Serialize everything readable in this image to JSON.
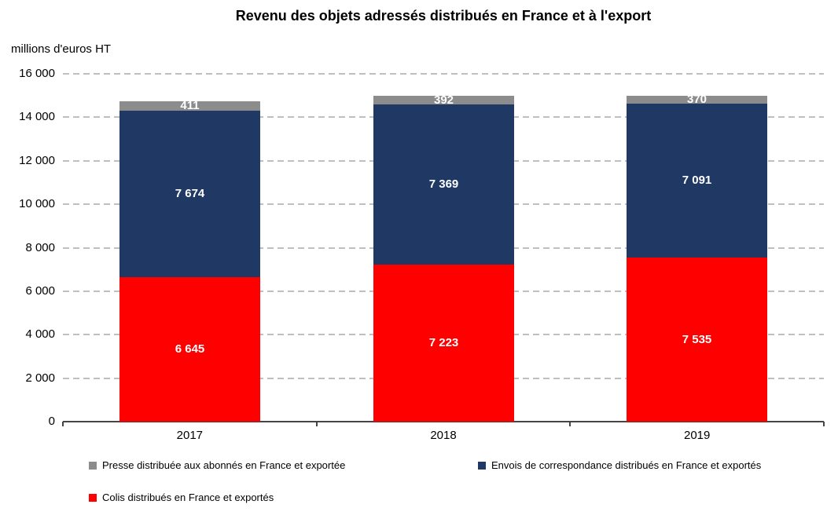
{
  "chart_data": {
    "type": "bar",
    "stacked": true,
    "title": "Revenu des objets adressés distribués en France et à l'export",
    "unit_label": "millions d'euros HT",
    "categories": [
      "2017",
      "2018",
      "2019"
    ],
    "series": [
      {
        "name": "Colis distribués en France et exportés",
        "color": "#FF0000",
        "values": [
          6645,
          7223,
          7535
        ],
        "labels": [
          "6 645",
          "7 223",
          "7 535"
        ]
      },
      {
        "name": "Envois de correspondance distribués en France et exportés",
        "color": "#1F3864",
        "values": [
          7674,
          7369,
          7091
        ],
        "labels": [
          "7 674",
          "7 369",
          "7 091"
        ]
      },
      {
        "name": "Presse distribuée aux abonnés en France et exportée",
        "color": "#8C8C8C",
        "values": [
          411,
          392,
          370
        ],
        "labels": [
          "411",
          "392",
          "370"
        ]
      }
    ],
    "ylim": [
      0,
      16000
    ],
    "y_ticks": [
      {
        "value": 0,
        "label": "0"
      },
      {
        "value": 2000,
        "label": "2 000"
      },
      {
        "value": 4000,
        "label": "4 000"
      },
      {
        "value": 6000,
        "label": "6 000"
      },
      {
        "value": 8000,
        "label": "8 000"
      },
      {
        "value": 10000,
        "label": "10 000"
      },
      {
        "value": 12000,
        "label": "12 000"
      },
      {
        "value": 14000,
        "label": "14 000"
      },
      {
        "value": 16000,
        "label": "16 000"
      }
    ],
    "grid": "horizontal-dashed",
    "legend_position": "bottom",
    "legend_rows": [
      [
        2,
        1
      ],
      [
        0
      ]
    ],
    "colors": {
      "gridline": "#BFBFBF",
      "axis": "#454545",
      "value_label_text": "#FFFFFF"
    }
  }
}
